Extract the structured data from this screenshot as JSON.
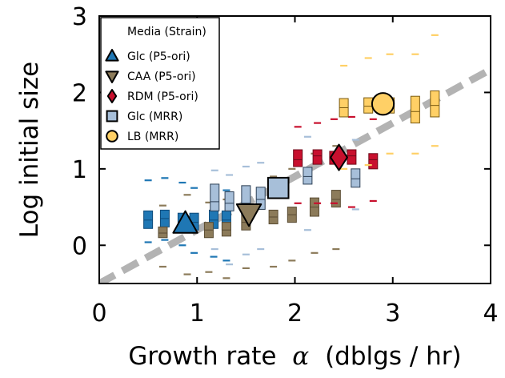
{
  "chart_data": {
    "type": "scatter",
    "xlabel_main": "Growth rate",
    "xlabel_symbol": "α",
    "xlabel_unit": "(dblgs / hr)",
    "ylabel": "Log initial size",
    "xlim": [
      0,
      4
    ],
    "ylim": [
      -0.5,
      3
    ],
    "xticks": [
      "0",
      "1",
      "2",
      "3",
      "4"
    ],
    "yticks": [
      "0",
      "1",
      "2",
      "3"
    ],
    "xtick_values": [
      0,
      1,
      2,
      3,
      4
    ],
    "ytick_values": [
      0,
      1,
      2,
      3
    ],
    "legend": {
      "title": "Media (Strain)",
      "placement": "top-left",
      "entries": [
        {
          "label": "Glc (P5-ori)",
          "marker": "triangle-up",
          "color": "#1f77b4"
        },
        {
          "label": "CAA (P5-ori)",
          "marker": "triangle-down",
          "color": "#8c7b5a"
        },
        {
          "label": "RDM (P5-ori)",
          "marker": "diamond",
          "color": "#c8102e"
        },
        {
          "label": "Glc (MRR)",
          "marker": "square",
          "color": "#a7bfd9"
        },
        {
          "label": "LB (MRR)",
          "marker": "circle",
          "color": "#ffd066"
        }
      ]
    },
    "fit_line": {
      "color": "#b3b3b3",
      "from": [
        0.0,
        -0.5
      ],
      "to": [
        4.0,
        2.3
      ]
    },
    "grid": false,
    "series": [
      {
        "name": "Glc (P5-ori)",
        "color": "#1f77b4",
        "edge": "#0d4a7a",
        "mean": [
          0.88,
          0.28
        ],
        "boxes": [
          {
            "x": 0.5,
            "q1": 0.22,
            "med": 0.33,
            "q3": 0.45,
            "lo": 0.04,
            "hi": 0.85
          },
          {
            "x": 0.67,
            "q1": 0.24,
            "med": 0.35,
            "q3": 0.46,
            "lo": 0.07,
            "hi": 0.88
          },
          {
            "x": 0.85,
            "q1": 0.2,
            "med": 0.3,
            "q3": 0.42,
            "lo": 0.0,
            "hi": 0.82
          },
          {
            "x": 0.97,
            "q1": 0.2,
            "med": 0.3,
            "q3": 0.42,
            "lo": -0.1,
            "hi": 0.75
          },
          {
            "x": 1.17,
            "q1": 0.22,
            "med": 0.33,
            "q3": 0.46,
            "lo": -0.15,
            "hi": 0.73
          },
          {
            "x": 1.3,
            "q1": 0.2,
            "med": 0.33,
            "q3": 0.45,
            "lo": -0.2,
            "hi": 0.72
          }
        ]
      },
      {
        "name": "CAA (P5-ori)",
        "color": "#8c7b5a",
        "edge": "#5a4c33",
        "mean": [
          1.53,
          0.42
        ],
        "boxes": [
          {
            "x": 0.65,
            "q1": 0.1,
            "med": 0.16,
            "q3": 0.24,
            "lo": -0.28,
            "hi": 0.52
          },
          {
            "x": 0.9,
            "q1": 0.16,
            "med": 0.22,
            "q3": 0.3,
            "lo": -0.38,
            "hi": 0.66
          },
          {
            "x": 1.12,
            "q1": 0.1,
            "med": 0.2,
            "q3": 0.3,
            "lo": -0.35,
            "hi": 0.56
          },
          {
            "x": 1.3,
            "q1": 0.12,
            "med": 0.2,
            "q3": 0.3,
            "lo": -0.43,
            "hi": 0.6
          },
          {
            "x": 1.5,
            "q1": 0.2,
            "med": 0.3,
            "q3": 0.42,
            "lo": -0.3,
            "hi": 0.68
          },
          {
            "x": 1.78,
            "q1": 0.28,
            "med": 0.37,
            "q3": 0.46,
            "lo": -0.28,
            "hi": 0.9
          },
          {
            "x": 1.97,
            "q1": 0.3,
            "med": 0.4,
            "q3": 0.5,
            "lo": -0.2,
            "hi": 1.0
          },
          {
            "x": 2.2,
            "q1": 0.38,
            "med": 0.5,
            "q3": 0.62,
            "lo": -0.1,
            "hi": 1.2
          },
          {
            "x": 2.42,
            "q1": 0.5,
            "med": 0.6,
            "q3": 0.72,
            "lo": -0.05,
            "hi": 1.3
          }
        ]
      },
      {
        "name": "RDM (P5-ori)",
        "color": "#c8102e",
        "edge": "#6e0a1a",
        "mean": [
          2.45,
          1.15
        ],
        "boxes": [
          {
            "x": 2.03,
            "q1": 1.03,
            "med": 1.12,
            "q3": 1.25,
            "lo": 0.55,
            "hi": 1.55
          },
          {
            "x": 2.23,
            "q1": 1.06,
            "med": 1.17,
            "q3": 1.25,
            "lo": 0.55,
            "hi": 1.6
          },
          {
            "x": 2.4,
            "q1": 1.06,
            "med": 1.13,
            "q3": 1.23,
            "lo": 0.55,
            "hi": 1.65
          },
          {
            "x": 2.58,
            "q1": 1.06,
            "med": 1.17,
            "q3": 1.25,
            "lo": 0.5,
            "hi": 1.68
          },
          {
            "x": 2.8,
            "q1": 1.0,
            "med": 1.12,
            "q3": 1.2,
            "lo": 0.58,
            "hi": 1.65
          }
        ]
      },
      {
        "name": "Glc (MRR)",
        "color": "#a7bfd9",
        "edge": "#2b3f55",
        "mean": [
          1.83,
          0.75
        ],
        "boxes": [
          {
            "x": 1.18,
            "q1": 0.45,
            "med": 0.57,
            "q3": 0.8,
            "lo": -0.05,
            "hi": 0.98
          },
          {
            "x": 1.33,
            "q1": 0.45,
            "med": 0.55,
            "q3": 0.7,
            "lo": -0.25,
            "hi": 0.92
          },
          {
            "x": 1.5,
            "q1": 0.4,
            "med": 0.55,
            "q3": 0.78,
            "lo": -0.12,
            "hi": 1.03
          },
          {
            "x": 1.65,
            "q1": 0.47,
            "med": 0.6,
            "q3": 0.76,
            "lo": -0.05,
            "hi": 1.08
          },
          {
            "x": 2.13,
            "q1": 0.8,
            "med": 0.9,
            "q3": 1.02,
            "lo": 0.2,
            "hi": 1.42
          },
          {
            "x": 2.62,
            "q1": 0.76,
            "med": 0.87,
            "q3": 1.0,
            "lo": 0.47,
            "hi": 1.38
          }
        ]
      },
      {
        "name": "LB (MRR)",
        "color": "#ffd066",
        "edge": "#7a5a10",
        "mean": [
          2.9,
          1.85
        ],
        "boxes": [
          {
            "x": 2.5,
            "q1": 1.68,
            "med": 1.8,
            "q3": 1.92,
            "lo": 1.0,
            "hi": 2.35
          },
          {
            "x": 2.75,
            "q1": 1.73,
            "med": 1.82,
            "q3": 1.93,
            "lo": 1.05,
            "hi": 2.45
          },
          {
            "x": 2.97,
            "q1": 1.73,
            "med": 1.83,
            "q3": 1.93,
            "lo": 1.2,
            "hi": 2.5
          },
          {
            "x": 3.23,
            "q1": 1.6,
            "med": 1.75,
            "q3": 1.95,
            "lo": 1.2,
            "hi": 2.5
          },
          {
            "x": 3.43,
            "q1": 1.68,
            "med": 1.83,
            "q3": 2.02,
            "lo": 1.3,
            "hi": 2.75
          }
        ]
      }
    ]
  }
}
